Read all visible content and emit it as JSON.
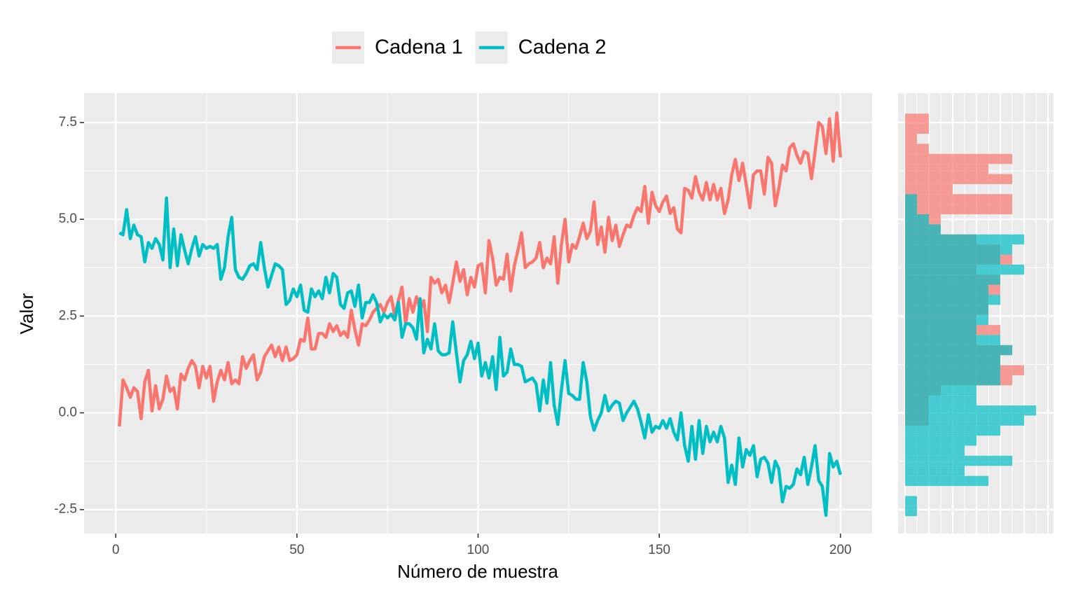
{
  "chart_data": [
    {
      "type": "line",
      "xlabel": "Número de muestra",
      "ylabel": "Valor",
      "x": [
        1,
        2,
        3,
        4,
        5,
        6,
        7,
        8,
        9,
        10,
        11,
        12,
        13,
        14,
        15,
        16,
        17,
        18,
        19,
        20,
        21,
        22,
        23,
        24,
        25,
        26,
        27,
        28,
        29,
        30,
        31,
        32,
        33,
        34,
        35,
        36,
        37,
        38,
        39,
        40,
        41,
        42,
        43,
        44,
        45,
        46,
        47,
        48,
        49,
        50,
        51,
        52,
        53,
        54,
        55,
        56,
        57,
        58,
        59,
        60,
        61,
        62,
        63,
        64,
        65,
        66,
        67,
        68,
        69,
        70,
        71,
        72,
        73,
        74,
        75,
        76,
        77,
        78,
        79,
        80,
        81,
        82,
        83,
        84,
        85,
        86,
        87,
        88,
        89,
        90,
        91,
        92,
        93,
        94,
        95,
        96,
        97,
        98,
        99,
        100,
        101,
        102,
        103,
        104,
        105,
        106,
        107,
        108,
        109,
        110,
        111,
        112,
        113,
        114,
        115,
        116,
        117,
        118,
        119,
        120,
        121,
        122,
        123,
        124,
        125,
        126,
        127,
        128,
        129,
        130,
        131,
        132,
        133,
        134,
        135,
        136,
        137,
        138,
        139,
        140,
        141,
        142,
        143,
        144,
        145,
        146,
        147,
        148,
        149,
        150,
        151,
        152,
        153,
        154,
        155,
        156,
        157,
        158,
        159,
        160,
        161,
        162,
        163,
        164,
        165,
        166,
        167,
        168,
        169,
        170,
        171,
        172,
        173,
        174,
        175,
        176,
        177,
        178,
        179,
        180,
        181,
        182,
        183,
        184,
        185,
        186,
        187,
        188,
        189,
        190,
        191,
        192,
        193,
        194,
        195,
        196,
        197,
        198,
        199,
        200
      ],
      "series": [
        {
          "name": "Cadena 1",
          "color": "#F8766D",
          "values": [
            -0.35,
            0.85,
            0.65,
            0.4,
            0.65,
            0.55,
            -0.15,
            0.8,
            1.1,
            0.05,
            0.7,
            0.1,
            0.35,
            0.95,
            0.55,
            0.65,
            0.1,
            1.0,
            0.85,
            1.15,
            1.35,
            1.2,
            0.65,
            1.2,
            0.9,
            1.2,
            0.3,
            0.8,
            1.1,
            0.85,
            1.3,
            0.75,
            0.85,
            0.75,
            1.45,
            1.15,
            1.35,
            1.5,
            0.85,
            1.05,
            1.45,
            1.6,
            1.75,
            1.45,
            1.7,
            1.35,
            1.7,
            1.35,
            1.4,
            1.5,
            1.9,
            1.85,
            2.45,
            1.65,
            1.65,
            2.05,
            2.05,
            1.95,
            2.3,
            2.1,
            2.25,
            2.0,
            2.1,
            1.95,
            2.65,
            2.15,
            1.75,
            2.3,
            2.25,
            2.4,
            2.6,
            2.7,
            2.8,
            2.6,
            2.85,
            3.0,
            2.5,
            2.9,
            3.25,
            2.3,
            2.95,
            2.6,
            3.0,
            2.65,
            2.9,
            2.1,
            3.5,
            3.35,
            3.45,
            3.1,
            3.3,
            2.85,
            3.35,
            3.9,
            3.4,
            3.7,
            3.05,
            3.5,
            3.25,
            3.8,
            3.85,
            3.1,
            4.45,
            4.0,
            3.3,
            3.5,
            3.45,
            4.1,
            3.15,
            3.8,
            4.2,
            4.65,
            3.75,
            3.85,
            3.9,
            4.0,
            4.4,
            3.75,
            4.0,
            3.85,
            4.55,
            3.35,
            4.35,
            5.0,
            3.9,
            4.35,
            4.25,
            4.55,
            4.9,
            4.5,
            4.7,
            5.45,
            4.35,
            4.8,
            4.15,
            5.05,
            4.45,
            4.85,
            4.3,
            4.6,
            4.85,
            4.8,
            5.1,
            5.3,
            5.2,
            5.85,
            4.9,
            5.7,
            5.35,
            5.2,
            5.45,
            5.6,
            5.15,
            5.3,
            4.75,
            4.65,
            5.8,
            5.75,
            5.55,
            6.1,
            5.7,
            5.5,
            5.95,
            5.5,
            5.9,
            5.5,
            5.8,
            5.15,
            5.5,
            6.15,
            6.55,
            6.0,
            6.45,
            5.9,
            5.3,
            6.15,
            6.25,
            6.25,
            5.65,
            6.6,
            6.45,
            5.35,
            5.8,
            6.4,
            6.25,
            6.85,
            6.95,
            6.65,
            6.45,
            6.75,
            6.7,
            6.05,
            6.75,
            7.5,
            7.4,
            6.7,
            7.6,
            6.5,
            7.75,
            6.6
          ]
        },
        {
          "name": "Cadena 2",
          "color": "#00BFC4",
          "values": [
            4.65,
            4.6,
            5.25,
            4.5,
            4.85,
            4.6,
            4.55,
            3.9,
            4.4,
            4.25,
            4.5,
            4.35,
            3.95,
            5.55,
            3.75,
            4.75,
            3.8,
            4.6,
            4.2,
            3.85,
            4.25,
            4.55,
            4.05,
            4.35,
            4.25,
            4.3,
            4.25,
            4.35,
            3.45,
            3.75,
            4.55,
            5.05,
            3.7,
            3.5,
            3.45,
            3.6,
            3.8,
            3.85,
            3.7,
            4.4,
            3.75,
            3.25,
            3.55,
            3.85,
            3.8,
            3.7,
            2.8,
            2.9,
            3.2,
            3.0,
            3.3,
            2.65,
            2.6,
            3.2,
            3.0,
            3.15,
            2.95,
            3.5,
            3.1,
            3.6,
            3.5,
            2.8,
            2.7,
            3.1,
            3.15,
            2.75,
            3.3,
            2.45,
            2.85,
            2.85,
            3.05,
            2.85,
            2.35,
            2.55,
            2.45,
            2.55,
            2.4,
            2.85,
            1.95,
            2.3,
            2.3,
            2.2,
            1.9,
            2.95,
            1.55,
            1.9,
            1.65,
            2.3,
            1.6,
            1.5,
            1.5,
            1.55,
            2.35,
            1.55,
            0.8,
            1.35,
            1.5,
            1.85,
            1.4,
            1.8,
            0.95,
            1.3,
            0.9,
            1.45,
            0.6,
            1.95,
            0.95,
            1.05,
            1.65,
            1.25,
            1.25,
            1.2,
            0.8,
            0.85,
            0.9,
            0.75,
            0.05,
            0.85,
            0.25,
            1.3,
            0.2,
            -0.3,
            0.6,
            1.35,
            0.5,
            0.45,
            0.35,
            0.35,
            1.3,
            0.8,
            -0.1,
            -0.45,
            -0.2,
            0.0,
            0.45,
            0.05,
            0.2,
            0.3,
            0.25,
            -0.2,
            0.0,
            0.15,
            0.3,
            0.1,
            -0.25,
            -0.65,
            -0.05,
            -0.5,
            -0.35,
            -0.4,
            -0.2,
            -0.4,
            -0.15,
            -0.5,
            -0.7,
            0.0,
            -0.85,
            -1.25,
            -0.35,
            -1.2,
            -0.2,
            -1.05,
            -0.35,
            -0.75,
            -0.5,
            -0.75,
            -0.35,
            -0.65,
            -1.8,
            -1.35,
            -1.85,
            -0.65,
            -1.4,
            -0.95,
            -1.1,
            -0.85,
            -1.65,
            -1.2,
            -1.15,
            -1.3,
            -1.8,
            -1.25,
            -1.45,
            -2.3,
            -1.9,
            -1.95,
            -1.85,
            -1.45,
            -1.6,
            -1.15,
            -1.85,
            -1.4,
            -0.85,
            -1.75,
            -1.9,
            -2.65,
            -1.05,
            -1.4,
            -1.25,
            -1.6
          ]
        }
      ],
      "xlim": [
        -8.75,
        208.75
      ],
      "xticks": [
        0,
        50,
        100,
        150,
        200
      ],
      "ylim": [
        -3.12,
        8.26
      ],
      "yticks": [
        {
          "value": -2.5,
          "label": "-2.5"
        },
        {
          "value": 0,
          "label": "0.0"
        },
        2.5,
        {
          "value": 5,
          "label": "5.0"
        },
        7.5
      ],
      "grid": true,
      "legend": "top"
    },
    {
      "type": "histogram",
      "orientation": "horizontal",
      "bins": [
        -2.67,
        -2.41,
        -2.15,
        -1.89,
        -1.63,
        -1.37,
        -1.11,
        -0.85,
        -0.59,
        -0.33,
        -0.07,
        0.19,
        0.45,
        0.71,
        0.97,
        1.23,
        1.49,
        1.75,
        2.01,
        2.27,
        2.53,
        2.79,
        3.05,
        3.31,
        3.57,
        3.83,
        4.09,
        4.35,
        4.61,
        4.87,
        5.13,
        5.39,
        5.65,
        5.91,
        6.17,
        6.43,
        6.69,
        6.95,
        7.21,
        7.47,
        7.73
      ],
      "series": [
        {
          "name": "Cadena 1",
          "color": "#F8766D",
          "values": [
            0,
            0,
            0,
            0,
            0,
            0,
            0,
            0,
            0,
            2,
            2,
            2,
            3,
            9,
            10,
            8,
            9,
            6,
            8,
            6,
            7,
            7,
            8,
            8,
            6,
            9,
            8,
            6,
            3,
            3,
            9,
            9,
            4,
            9,
            7,
            9,
            2,
            1,
            2,
            2
          ]
        },
        {
          "name": "Cadena 2",
          "color": "#00BFC4",
          "values": [
            1,
            1,
            0,
            7,
            5,
            9,
            5,
            6,
            8,
            10,
            11,
            6,
            6,
            8,
            8,
            8,
            9,
            8,
            6,
            7,
            7,
            8,
            7,
            8,
            10,
            8,
            9,
            10,
            3,
            2,
            1,
            1,
            0,
            0,
            0,
            0,
            0,
            0,
            0,
            0
          ]
        }
      ],
      "xlim": [
        -0.59,
        12.47
      ],
      "xticks": [
        0,
        2,
        4,
        6,
        8,
        10,
        12
      ],
      "ylim": [
        -3.12,
        8.26
      ],
      "yticks": [
        -2.5,
        0,
        2.5,
        5,
        7.5
      ],
      "grid": true,
      "opacity": 0.7
    }
  ]
}
